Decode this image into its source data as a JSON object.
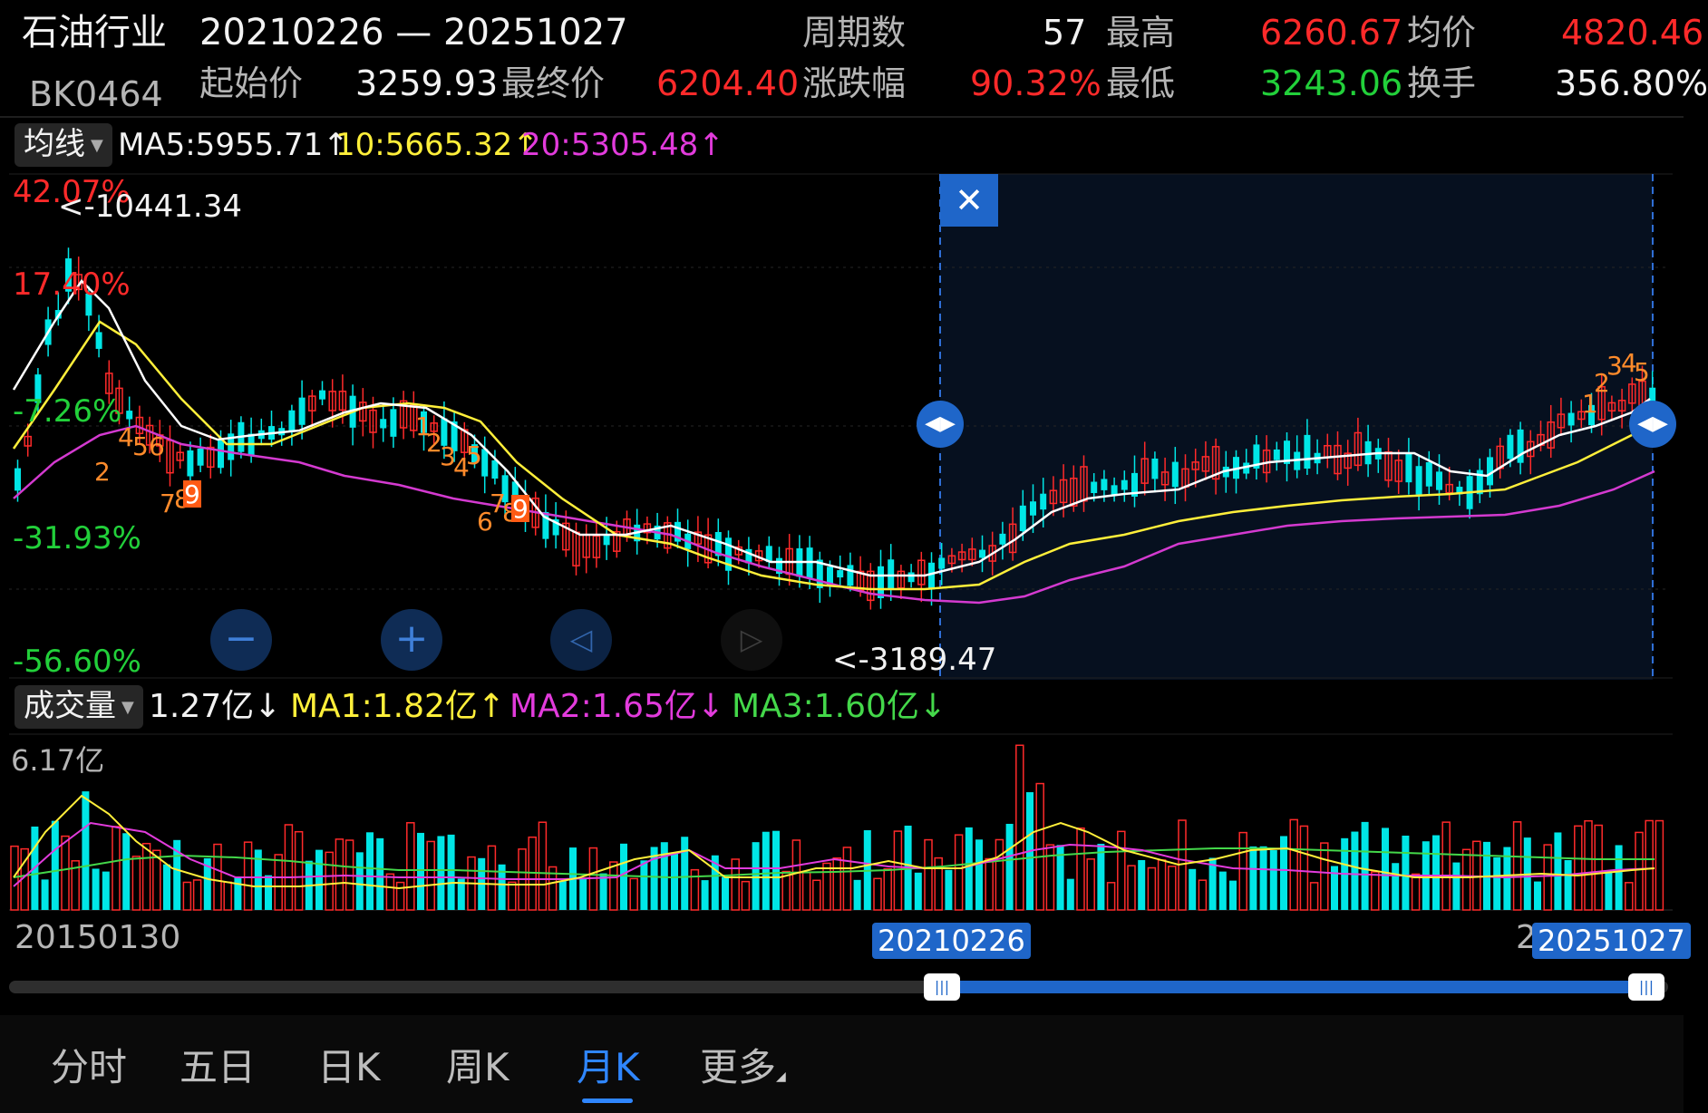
{
  "header": {
    "sector_name": "石油行业",
    "date_range": "20210226 — 20251027",
    "code": "BK0464",
    "period_label": "周期数",
    "period_value": "57",
    "high_label": "最高",
    "high_value": "6260.67",
    "avg_label": "均价",
    "avg_value": "4820.46",
    "start_label": "起始价",
    "start_value": "3259.93",
    "end_label": "最终价",
    "end_value": "6204.40",
    "change_label": "涨跌幅",
    "change_value": "90.32%",
    "low_label": "最低",
    "low_value": "3243.06",
    "turnover_label": "换手",
    "turnover_value": "356.80%"
  },
  "ma_bar": {
    "selector": "均线",
    "ma5": "MA5:5955.71↑",
    "ma10": "10:5665.32↑",
    "ma20": "20:5305.48↑"
  },
  "price_chart": {
    "scale_labels": [
      "42.07%",
      "17.40%",
      "-7.26%",
      "-31.93%",
      "-56.60%"
    ],
    "max_marker": "<-10441.34",
    "min_marker": "<-3189.47",
    "range_close": "✕",
    "seq_numbers_a": [
      "4",
      "5",
      "6",
      "2",
      "7",
      "8",
      "9"
    ],
    "seq_numbers_b": [
      "1",
      "2",
      "3",
      "4",
      "5",
      "6",
      "7",
      "8",
      "9"
    ],
    "seq_numbers_c": [
      "1",
      "2",
      "3",
      "4",
      "5"
    ],
    "zoom_out": "−",
    "zoom_in": "+",
    "prev": "◁",
    "next": "▷"
  },
  "volume_bar": {
    "selector": "成交量",
    "value": "1.27亿↓",
    "ma1": "MA1:1.82亿↑",
    "ma2": "MA2:1.65亿↓",
    "ma3": "MA3:1.60亿↓",
    "scale_top": "6.17亿"
  },
  "timeline": {
    "start_date": "20150130",
    "sel_start": "20210226",
    "sel_end": "20251027",
    "end_prefix": "2"
  },
  "tabs": [
    "分时",
    "五日",
    "日K",
    "周K",
    "月K",
    "更多"
  ],
  "active_tab": "月K",
  "colors": {
    "up": "#ff2a2a",
    "down": "#00e6e6",
    "ma5": "#ffffff",
    "ma10": "#ffef3a",
    "ma20": "#e23bdc",
    "accent": "#1f66c9"
  }
}
